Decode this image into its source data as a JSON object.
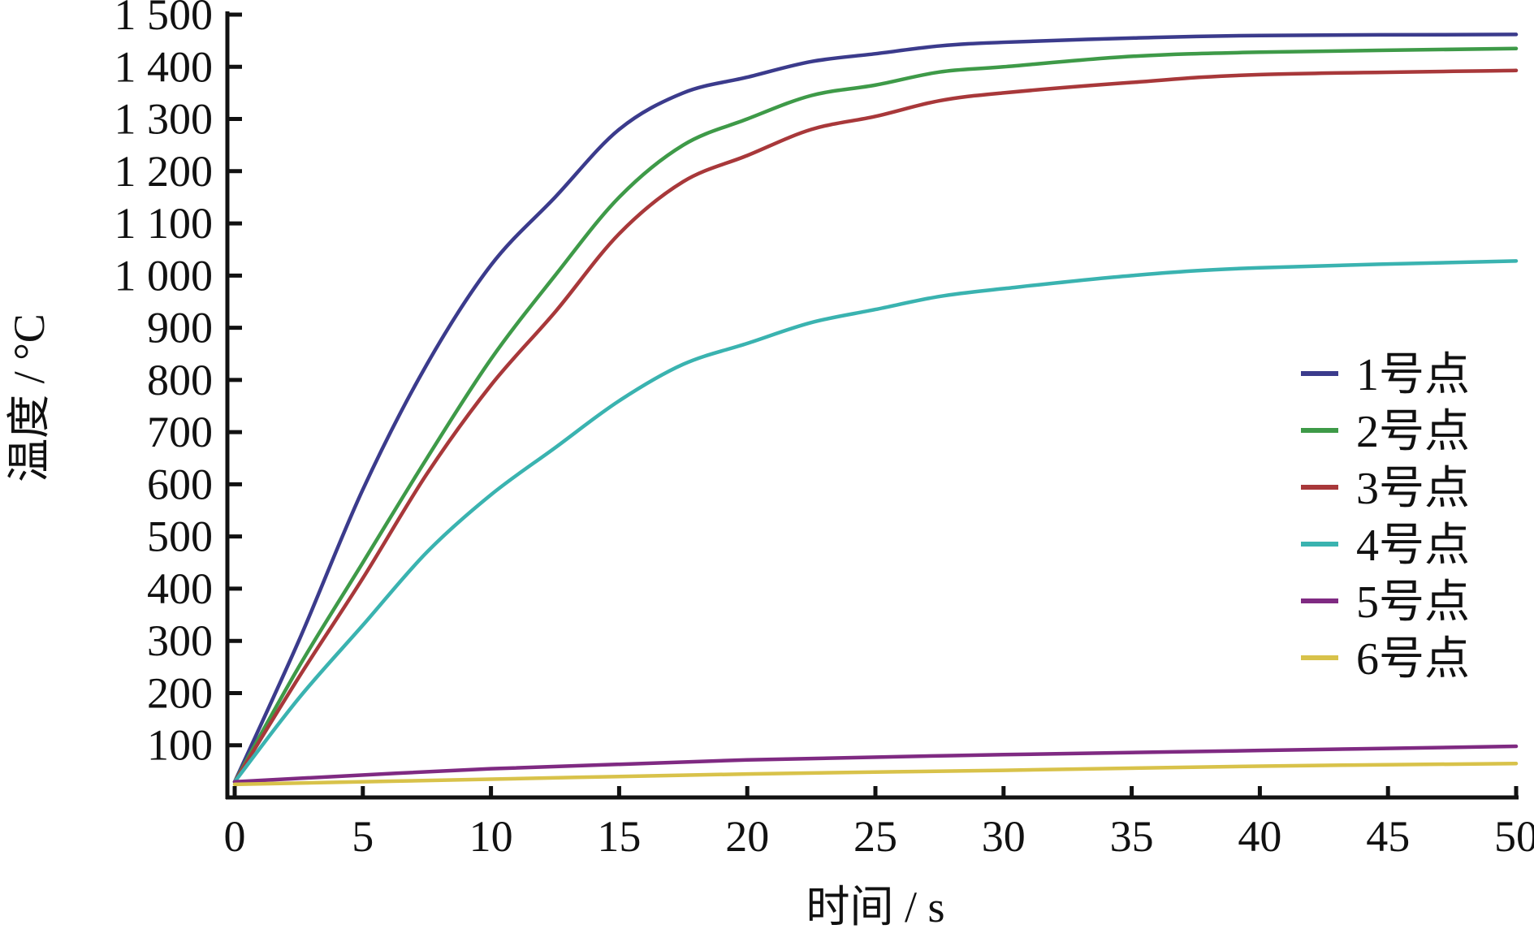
{
  "chart_data": {
    "type": "line",
    "title": "",
    "xlabel": "时间 / s",
    "ylabel": "温度 / °C",
    "xlim": [
      0,
      50
    ],
    "ylim": [
      0,
      1500
    ],
    "xticks": [
      0,
      5,
      10,
      15,
      20,
      25,
      30,
      35,
      40,
      45,
      50
    ],
    "xtick_labels": [
      "0",
      "5",
      "10",
      "15",
      "20",
      "25",
      "30",
      "35",
      "40",
      "45",
      "50"
    ],
    "yticks": [
      100,
      200,
      300,
      400,
      500,
      600,
      700,
      800,
      900,
      1000,
      1100,
      1200,
      1300,
      1400,
      1500
    ],
    "ytick_labels": [
      "100",
      "200",
      "300",
      "400",
      "500",
      "600",
      "700",
      "800",
      "900",
      "1 000",
      "1 100",
      "1 200",
      "1 300",
      "1 400",
      "1 500"
    ],
    "grid": false,
    "legend_position": "right",
    "series": [
      {
        "name": "1号点",
        "color": "#3b3b8c",
        "x": [
          0,
          2.5,
          5,
          7.5,
          10,
          12.5,
          15,
          17.5,
          20,
          22.5,
          25,
          27.5,
          30,
          35,
          40,
          50
        ],
        "y": [
          30,
          300,
          590,
          830,
          1020,
          1150,
          1280,
          1350,
          1380,
          1410,
          1425,
          1440,
          1447,
          1455,
          1460,
          1462
        ]
      },
      {
        "name": "2号点",
        "color": "#3e9a48",
        "x": [
          0,
          2.5,
          5,
          7.5,
          10,
          12.5,
          15,
          17.5,
          20,
          22.5,
          25,
          27.5,
          30,
          35,
          40,
          50
        ],
        "y": [
          30,
          250,
          450,
          650,
          840,
          1000,
          1150,
          1250,
          1300,
          1345,
          1365,
          1390,
          1400,
          1420,
          1428,
          1435
        ]
      },
      {
        "name": "3号点",
        "color": "#a8383a",
        "x": [
          0,
          2.5,
          5,
          7.5,
          10,
          12.5,
          15,
          17.5,
          20,
          22.5,
          25,
          27.5,
          30,
          35,
          40,
          50
        ],
        "y": [
          30,
          230,
          420,
          620,
          790,
          930,
          1080,
          1180,
          1230,
          1280,
          1305,
          1335,
          1350,
          1370,
          1385,
          1393
        ]
      },
      {
        "name": "4号点",
        "color": "#3ab3b0",
        "x": [
          0,
          2.5,
          5,
          7.5,
          10,
          12.5,
          15,
          17.5,
          20,
          22.5,
          25,
          27.5,
          30,
          35,
          40,
          50
        ],
        "y": [
          30,
          190,
          330,
          470,
          580,
          670,
          760,
          830,
          870,
          910,
          935,
          960,
          975,
          1000,
          1015,
          1028
        ]
      },
      {
        "name": "5号点",
        "color": "#7f2a82",
        "x": [
          0,
          10,
          20,
          30,
          40,
          50
        ],
        "y": [
          30,
          55,
          72,
          82,
          90,
          98
        ]
      },
      {
        "name": "6号点",
        "color": "#d8c24a",
        "x": [
          0,
          10,
          20,
          30,
          40,
          50
        ],
        "y": [
          25,
          35,
          45,
          52,
          60,
          65
        ]
      }
    ]
  }
}
